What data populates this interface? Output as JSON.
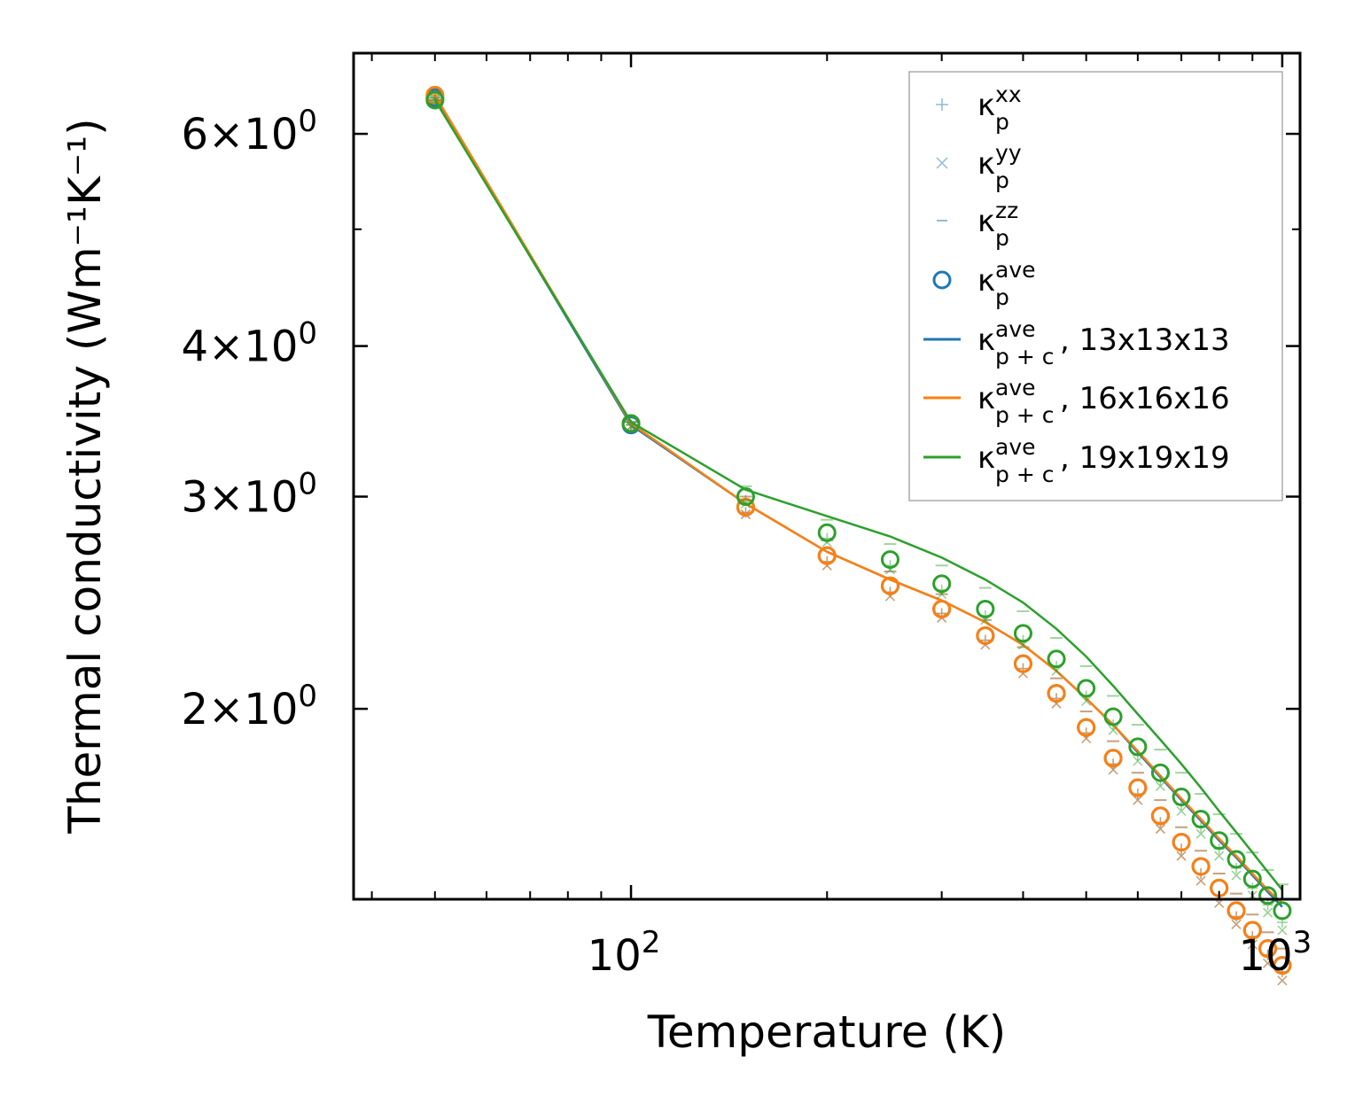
{
  "chart_data": {
    "type": "line",
    "xscale": "log",
    "yscale": "log",
    "xlabel": "Temperature (K)",
    "ylabel": "Thermal conductivity (Wm⁻¹K⁻¹)",
    "xlim": [
      37.5,
      1065
    ],
    "ylim": [
      1.39,
      7.0
    ],
    "xticks": [
      {
        "value": 100,
        "base": "10",
        "exp": "2"
      },
      {
        "value": 1000,
        "base": "10",
        "exp": "3"
      }
    ],
    "yticks": [
      {
        "value": 2,
        "base": "2×10",
        "exp": "0"
      },
      {
        "value": 3,
        "base": "3×10",
        "exp": "0"
      },
      {
        "value": 4,
        "base": "4×10",
        "exp": "0"
      },
      {
        "value": 6,
        "base": "6×10",
        "exp": "0"
      }
    ],
    "legend_position": "top-right",
    "colors": {
      "blue": "#1f77b4",
      "orange": "#ff7f0e",
      "green": "#2ca02c"
    },
    "x": [
      50,
      100,
      150,
      200,
      250,
      300,
      350,
      400,
      450,
      500,
      550,
      600,
      650,
      700,
      750,
      800,
      850,
      900,
      950,
      1000
    ],
    "series": [
      {
        "name": "13x13x13",
        "color": "#1f77b4",
        "kxx": [
          6.43,
          3.44,
          2.91,
          2.65,
          2.5,
          2.4,
          2.28,
          2.16,
          2.04,
          1.91,
          1.8,
          1.7,
          1.61,
          1.53,
          1.46,
          1.4,
          1.345,
          1.295,
          1.25,
          1.21
        ],
        "kyy": [
          6.43,
          3.43,
          2.9,
          2.63,
          2.48,
          2.38,
          2.26,
          2.14,
          2.02,
          1.89,
          1.78,
          1.68,
          1.59,
          1.51,
          1.44,
          1.38,
          1.325,
          1.275,
          1.23,
          1.19
        ],
        "kzz": [
          6.43,
          3.46,
          3.0,
          2.76,
          2.6,
          2.49,
          2.37,
          2.25,
          2.12,
          1.99,
          1.88,
          1.77,
          1.68,
          1.595,
          1.525,
          1.46,
          1.405,
          1.35,
          1.305,
          1.265
        ],
        "kave": [
          6.43,
          3.44,
          2.94,
          2.68,
          2.53,
          2.42,
          2.3,
          2.18,
          2.06,
          1.93,
          1.82,
          1.72,
          1.63,
          1.55,
          1.48,
          1.42,
          1.36,
          1.31,
          1.265,
          1.225
        ],
        "kpc": [
          6.43,
          3.44,
          2.96,
          2.7,
          2.56,
          2.46,
          2.36,
          2.26,
          2.15,
          2.04,
          1.94,
          1.84,
          1.755,
          1.68,
          1.615,
          1.555,
          1.505,
          1.455,
          1.41,
          1.37
        ]
      },
      {
        "name": "16x16x16",
        "color": "#ff7f0e",
        "kxx": [
          6.46,
          3.44,
          2.91,
          2.65,
          2.5,
          2.4,
          2.28,
          2.16,
          2.04,
          1.91,
          1.8,
          1.7,
          1.61,
          1.53,
          1.46,
          1.4,
          1.345,
          1.295,
          1.25,
          1.21
        ],
        "kyy": [
          6.46,
          3.43,
          2.9,
          2.63,
          2.48,
          2.38,
          2.26,
          2.14,
          2.02,
          1.89,
          1.78,
          1.68,
          1.59,
          1.51,
          1.44,
          1.38,
          1.325,
          1.275,
          1.23,
          1.19
        ],
        "kzz": [
          6.46,
          3.46,
          3.0,
          2.76,
          2.6,
          2.49,
          2.37,
          2.25,
          2.12,
          1.99,
          1.88,
          1.77,
          1.68,
          1.595,
          1.525,
          1.46,
          1.405,
          1.35,
          1.305,
          1.265
        ],
        "kave": [
          6.46,
          3.45,
          2.94,
          2.68,
          2.53,
          2.42,
          2.3,
          2.18,
          2.06,
          1.93,
          1.82,
          1.72,
          1.63,
          1.55,
          1.48,
          1.42,
          1.36,
          1.31,
          1.265,
          1.225
        ],
        "kpc": [
          6.46,
          3.45,
          2.96,
          2.7,
          2.56,
          2.46,
          2.36,
          2.26,
          2.15,
          2.04,
          1.94,
          1.845,
          1.76,
          1.685,
          1.62,
          1.56,
          1.51,
          1.46,
          1.415,
          1.38
        ]
      },
      {
        "name": "19x19x19",
        "color": "#2ca02c",
        "kxx": [
          6.4,
          3.44,
          2.98,
          2.77,
          2.63,
          2.51,
          2.39,
          2.28,
          2.17,
          2.05,
          1.94,
          1.83,
          1.745,
          1.665,
          1.595,
          1.53,
          1.475,
          1.42,
          1.375,
          1.33
        ],
        "kyy": [
          6.4,
          3.43,
          2.96,
          2.75,
          2.61,
          2.49,
          2.37,
          2.26,
          2.15,
          2.03,
          1.92,
          1.81,
          1.725,
          1.645,
          1.575,
          1.51,
          1.455,
          1.4,
          1.355,
          1.31
        ],
        "kzz": [
          6.4,
          3.46,
          3.06,
          2.87,
          2.74,
          2.63,
          2.52,
          2.41,
          2.29,
          2.17,
          2.05,
          1.94,
          1.85,
          1.77,
          1.7,
          1.635,
          1.575,
          1.52,
          1.47,
          1.43
        ],
        "kave": [
          6.4,
          3.45,
          3.0,
          2.8,
          2.66,
          2.54,
          2.42,
          2.31,
          2.2,
          2.08,
          1.97,
          1.86,
          1.77,
          1.69,
          1.62,
          1.555,
          1.5,
          1.445,
          1.4,
          1.36
        ],
        "kpc": [
          6.4,
          3.46,
          3.04,
          2.89,
          2.78,
          2.67,
          2.56,
          2.45,
          2.33,
          2.21,
          2.09,
          1.98,
          1.885,
          1.8,
          1.72,
          1.645,
          1.58,
          1.52,
          1.465,
          1.415
        ]
      }
    ],
    "legend": [
      {
        "kind": "plus",
        "label": "κ",
        "sub": "p",
        "sup": "xx",
        "suffix": ""
      },
      {
        "kind": "cross",
        "label": "κ",
        "sub": "p",
        "sup": "yy",
        "suffix": ""
      },
      {
        "kind": "dash",
        "label": "κ",
        "sub": "p",
        "sup": "zz",
        "suffix": ""
      },
      {
        "kind": "circle",
        "label": "κ",
        "sub": "p",
        "sup": "ave",
        "suffix": ""
      },
      {
        "kind": "line-blue",
        "label": "κ",
        "sub": "p + c",
        "sup": "ave",
        "suffix": ", 13x13x13"
      },
      {
        "kind": "line-orange",
        "label": "κ",
        "sub": "p + c",
        "sup": "ave",
        "suffix": ", 16x16x16"
      },
      {
        "kind": "line-green",
        "label": "κ",
        "sub": "p + c",
        "sup": "ave",
        "suffix": ", 19x19x19"
      }
    ]
  }
}
